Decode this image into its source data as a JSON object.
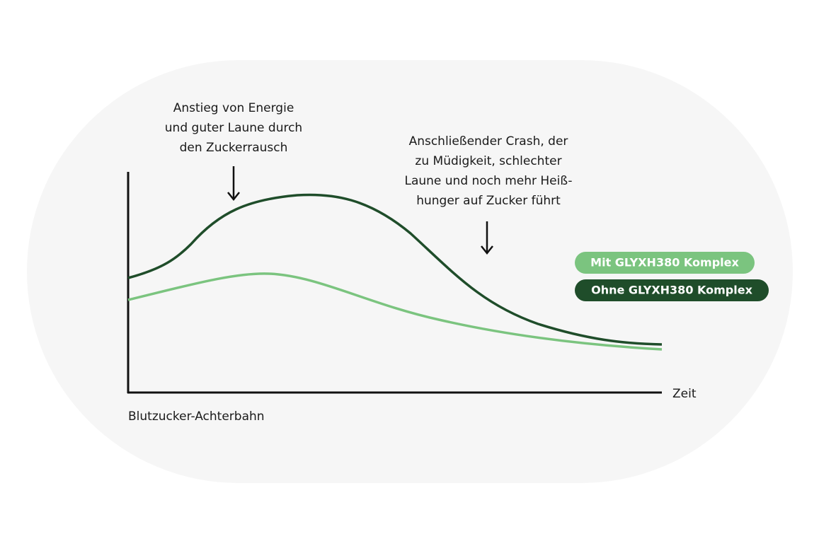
{
  "annotations": [
    {
      "lines": [
        "Anstieg von Energie",
        "und guter Laune durch",
        "den Zuckerrausch"
      ]
    },
    {
      "lines": [
        "Anschließender Crash, der",
        "zu Müdigkeit, schlechter",
        "Laune und noch mehr Heiß-",
        "hunger auf Zucker führt"
      ]
    }
  ],
  "x_axis_label": "Zeit",
  "caption": "Blutzucker-Achterbahn",
  "legend": [
    "Mit GLYXH380 Komplex",
    "Ohne GLYXH380 Komplex"
  ]
}
